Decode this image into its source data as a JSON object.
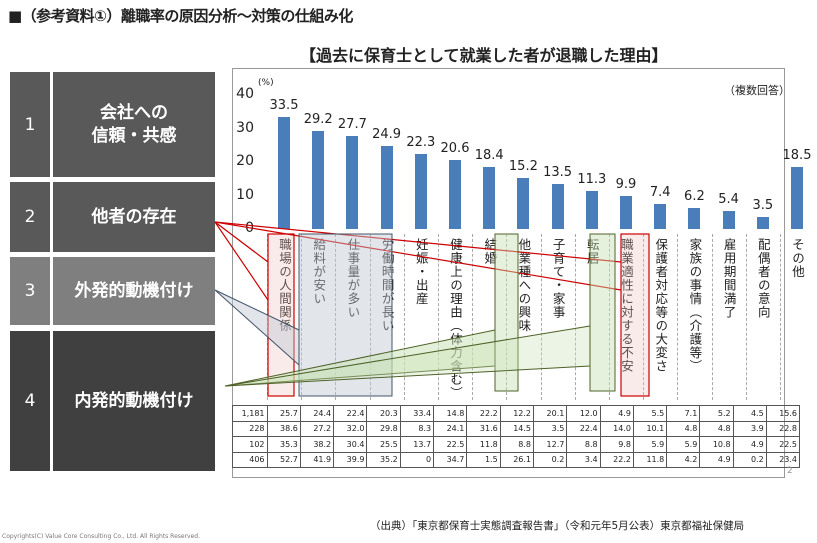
{
  "page_title": "■（参考資料①）離職率の原因分析～対策の仕組み化",
  "left_panel": [
    {
      "num": "1",
      "text": "会社への\n信頼・共感",
      "color": "#595959"
    },
    {
      "num": "2",
      "text": "他者の存在",
      "color": "#595959"
    },
    {
      "num": "3",
      "text": "外発的動機付け",
      "color": "#7f7f7f"
    },
    {
      "num": "4",
      "text": "内発的動機付け",
      "color": "#404040"
    }
  ],
  "chart_data": {
    "type": "bar",
    "title": "【過去に保育士として就業した者が退職した理由】",
    "ylabel": "(%)",
    "note": "（複数回答）",
    "ylim": [
      0,
      40
    ],
    "yticks": [
      "0",
      "10",
      "20",
      "30",
      "40"
    ],
    "categories": [
      "職場の人間関係",
      "給料が安い",
      "仕事量が多い",
      "労働時間が長い",
      "妊娠・出産",
      "健康上の理由（体力含む）",
      "結婚",
      "他業種への興味",
      "子育て・家事",
      "転居",
      "職業適性に対する不安",
      "保護者対応等の大変さ",
      "家族の事情（介護等）",
      "雇用期間満了",
      "配偶者の意向",
      "その他"
    ],
    "values": [
      33.5,
      29.2,
      27.7,
      24.9,
      22.3,
      20.6,
      18.4,
      15.2,
      13.5,
      11.3,
      9.9,
      7.4,
      6.2,
      5.4,
      3.5,
      18.5
    ],
    "value_labels": [
      "33.5",
      "29.2",
      "27.7",
      "24.9",
      "22.3",
      "20.6",
      "18.4",
      "15.2",
      "13.5",
      "11.3",
      "9.9",
      "7.4",
      "6.2",
      "5.4",
      "3.5",
      "18.5"
    ],
    "bar_color": "#4a7ebb",
    "table": [
      [
        "1,181",
        "25.7",
        "24.4",
        "22.4",
        "20.3",
        "33.4",
        "14.8",
        "22.2",
        "12.2",
        "20.1",
        "12.0",
        "4.9",
        "5.5",
        "7.1",
        "5.2",
        "4.5",
        "15.6"
      ],
      [
        "228",
        "38.6",
        "27.2",
        "32.0",
        "29.8",
        "8.3",
        "24.1",
        "31.6",
        "14.5",
        "3.5",
        "22.4",
        "14.0",
        "10.1",
        "4.8",
        "4.8",
        "3.9",
        "22.8"
      ],
      [
        "102",
        "35.3",
        "38.2",
        "30.4",
        "25.5",
        "13.7",
        "22.5",
        "11.8",
        "8.8",
        "12.7",
        "8.8",
        "9.8",
        "5.9",
        "5.9",
        "10.8",
        "4.9",
        "22.5"
      ],
      [
        "406",
        "52.7",
        "41.9",
        "39.9",
        "35.2",
        "0",
        "34.7",
        "1.5",
        "26.1",
        "0.2",
        "3.4",
        "22.2",
        "11.8",
        "4.2",
        "4.9",
        "0.2",
        "23.4"
      ]
    ]
  },
  "source": "（出典）「東京都保育士実態調査報告書」（令和元年5月公表）東京都福祉保健局",
  "copyright": "Copyrights(C) Value Core Consulting Co., Ltd.  All Rights Reserved.",
  "page_number": "2"
}
